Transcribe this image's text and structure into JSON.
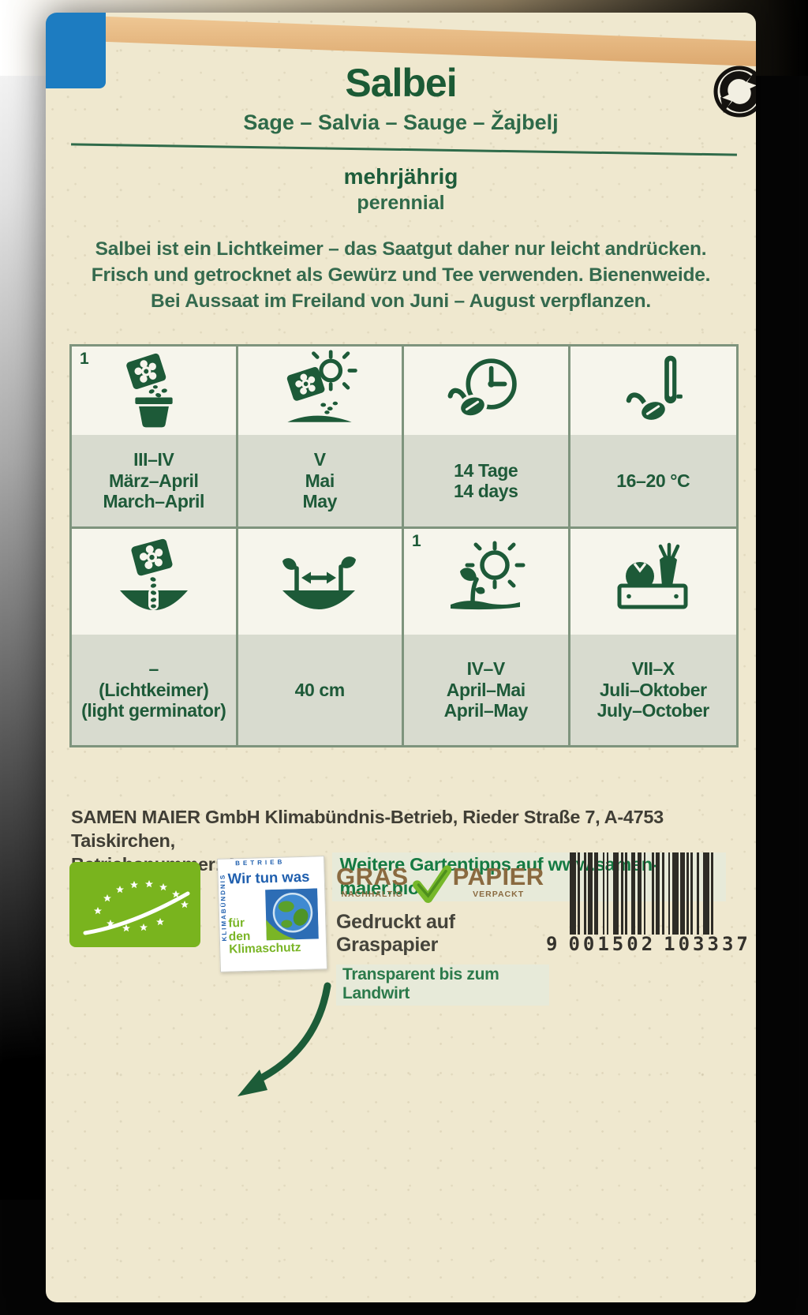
{
  "packet": {
    "title": "Salbei",
    "subtitle": "Sage – Salvia – Sauge – Žajbelj",
    "lifecycle": {
      "de": "mehrjährig",
      "en": "perennial"
    },
    "description": {
      "line1": "Salbei ist ein Lichtkeimer – das Saatgut daher nur leicht andrücken.",
      "line2": "Frisch und getrocknet als Gewürz und Tee verwenden. Bienenweide.",
      "line3": "Bei Aussaat im Freiland von Juni – August verpflanzen."
    },
    "grid": {
      "cells": [
        {
          "name": "sowing-indoor",
          "sup": "1",
          "l1": "III–IV",
          "l2": "März–April",
          "l3": "March–April"
        },
        {
          "name": "sowing-outdoor",
          "sup": "",
          "l1": "V",
          "l2": "Mai",
          "l3": "May"
        },
        {
          "name": "germination-duration",
          "sup": "",
          "l1": "14 Tage",
          "l2": "14 days",
          "l3": ""
        },
        {
          "name": "germination-temp",
          "sup": "",
          "l1": "16–20 °C",
          "l2": "",
          "l3": ""
        },
        {
          "name": "sowing-depth",
          "sup": "",
          "l1": "–",
          "l2": "(Lichtkeimer)",
          "l3": "(light germinator)"
        },
        {
          "name": "plant-spacing",
          "sup": "",
          "l1": "40 cm",
          "l2": "",
          "l3": ""
        },
        {
          "name": "planting-out",
          "sup": "1",
          "l1": "IV–V",
          "l2": "April–Mai",
          "l3": "April–May"
        },
        {
          "name": "harvest-time",
          "sup": "",
          "l1": "VII–X",
          "l2": "Juli–Oktober",
          "l3": "July–October"
        }
      ]
    },
    "footer": {
      "address_line1": "SAMEN MAIER GmbH Klimabündnis-Betrieb, Rieder Straße 7, A-4753 Taiskirchen,",
      "address_line2": "Betriebsnummer: A-OÖ-100.",
      "tips": "Weitere Gartentipps auf www.samen-maier.bio"
    },
    "logos": {
      "climate": {
        "edge_top": "BETRIEB",
        "edge_left": "KLIMABÜNDNIS",
        "line1": "Wir tun was",
        "f1": "für",
        "f2": "den",
        "f3": "Klimaschutz"
      },
      "gras": {
        "w1": "GRAS",
        "s1": "NACHHALTIG",
        "w2": "PAPIER",
        "s2": "VERPACKT",
        "printed": "Gedruckt auf Graspapier",
        "transparent": "Transparent bis zum Landwirt"
      }
    },
    "barcode": {
      "d1": "9",
      "d2": "001502",
      "d3": "103337"
    },
    "colors": {
      "ink_green": "#1d5a38",
      "organic_green": "#79b41e",
      "packet_blue": "#1d7cc1",
      "gras_brown": "#8a6a40",
      "paper": "#efe8cf"
    }
  }
}
